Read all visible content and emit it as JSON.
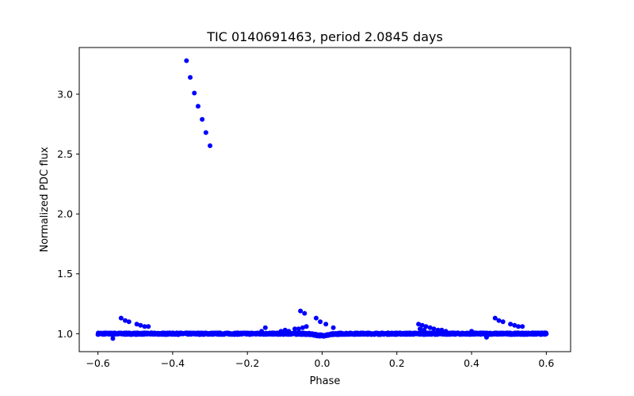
{
  "chart_data": {
    "type": "scatter",
    "title": "TIC 0140691463, period 2.0845 days",
    "xlabel": "Phase",
    "ylabel": "Normalized PDC flux",
    "xlim": [
      -0.65,
      0.665
    ],
    "ylim": [
      0.85,
      3.39
    ],
    "x_ticks": [
      -0.6,
      -0.4,
      -0.2,
      0.0,
      0.2,
      0.4,
      0.6
    ],
    "x_tick_labels": [
      "−0.6",
      "−0.4",
      "−0.2",
      "0.0",
      "0.2",
      "0.4",
      "0.6"
    ],
    "y_ticks": [
      1.0,
      1.5,
      2.0,
      2.5,
      3.0
    ],
    "y_tick_labels": [
      "1.0",
      "1.5",
      "2.0",
      "2.5",
      "3.0"
    ],
    "marker_color": "#0000ff",
    "series": [
      {
        "name": "flux",
        "baseline": {
          "x_range": [
            -0.6,
            0.6
          ],
          "value": 1.0,
          "scatter": 0.007,
          "dip_center": 0.0,
          "dip_width": 0.02,
          "dip_depth": 0.015
        },
        "points": [
          {
            "x": -0.363,
            "y": 3.28
          },
          {
            "x": -0.353,
            "y": 3.14
          },
          {
            "x": -0.342,
            "y": 3.01
          },
          {
            "x": -0.332,
            "y": 2.9
          },
          {
            "x": -0.321,
            "y": 2.79
          },
          {
            "x": -0.311,
            "y": 2.68
          },
          {
            "x": -0.3,
            "y": 2.57
          },
          {
            "x": -0.538,
            "y": 1.13
          },
          {
            "x": -0.527,
            "y": 1.11
          },
          {
            "x": -0.517,
            "y": 1.1
          },
          {
            "x": -0.496,
            "y": 1.08
          },
          {
            "x": -0.486,
            "y": 1.07
          },
          {
            "x": -0.475,
            "y": 1.06
          },
          {
            "x": -0.465,
            "y": 1.06
          },
          {
            "x": -0.162,
            "y": 1.02
          },
          {
            "x": -0.152,
            "y": 1.05
          },
          {
            "x": -0.11,
            "y": 1.02
          },
          {
            "x": -0.099,
            "y": 1.03
          },
          {
            "x": -0.089,
            "y": 1.02
          },
          {
            "x": -0.073,
            "y": 1.04
          },
          {
            "x": -0.063,
            "y": 1.04
          },
          {
            "x": -0.052,
            "y": 1.05
          },
          {
            "x": -0.042,
            "y": 1.06
          },
          {
            "x": -0.058,
            "y": 1.19
          },
          {
            "x": -0.047,
            "y": 1.17
          },
          {
            "x": -0.016,
            "y": 1.13
          },
          {
            "x": -0.005,
            "y": 1.1
          },
          {
            "x": 0.01,
            "y": 1.08
          },
          {
            "x": 0.03,
            "y": 1.05
          },
          {
            "x": 0.258,
            "y": 1.08
          },
          {
            "x": 0.268,
            "y": 1.07
          },
          {
            "x": 0.278,
            "y": 1.06
          },
          {
            "x": 0.289,
            "y": 1.05
          },
          {
            "x": 0.299,
            "y": 1.04
          },
          {
            "x": 0.31,
            "y": 1.03
          },
          {
            "x": 0.32,
            "y": 1.03
          },
          {
            "x": 0.331,
            "y": 1.02
          },
          {
            "x": 0.262,
            "y": 1.04
          },
          {
            "x": 0.273,
            "y": 1.03
          },
          {
            "x": 0.463,
            "y": 1.13
          },
          {
            "x": 0.473,
            "y": 1.11
          },
          {
            "x": 0.484,
            "y": 1.1
          },
          {
            "x": 0.504,
            "y": 1.08
          },
          {
            "x": 0.515,
            "y": 1.07
          },
          {
            "x": 0.525,
            "y": 1.06
          },
          {
            "x": 0.536,
            "y": 1.06
          },
          {
            "x": 0.4,
            "y": 1.02
          },
          {
            "x": 0.44,
            "y": 0.97
          },
          {
            "x": -0.56,
            "y": 0.96
          }
        ]
      }
    ]
  }
}
